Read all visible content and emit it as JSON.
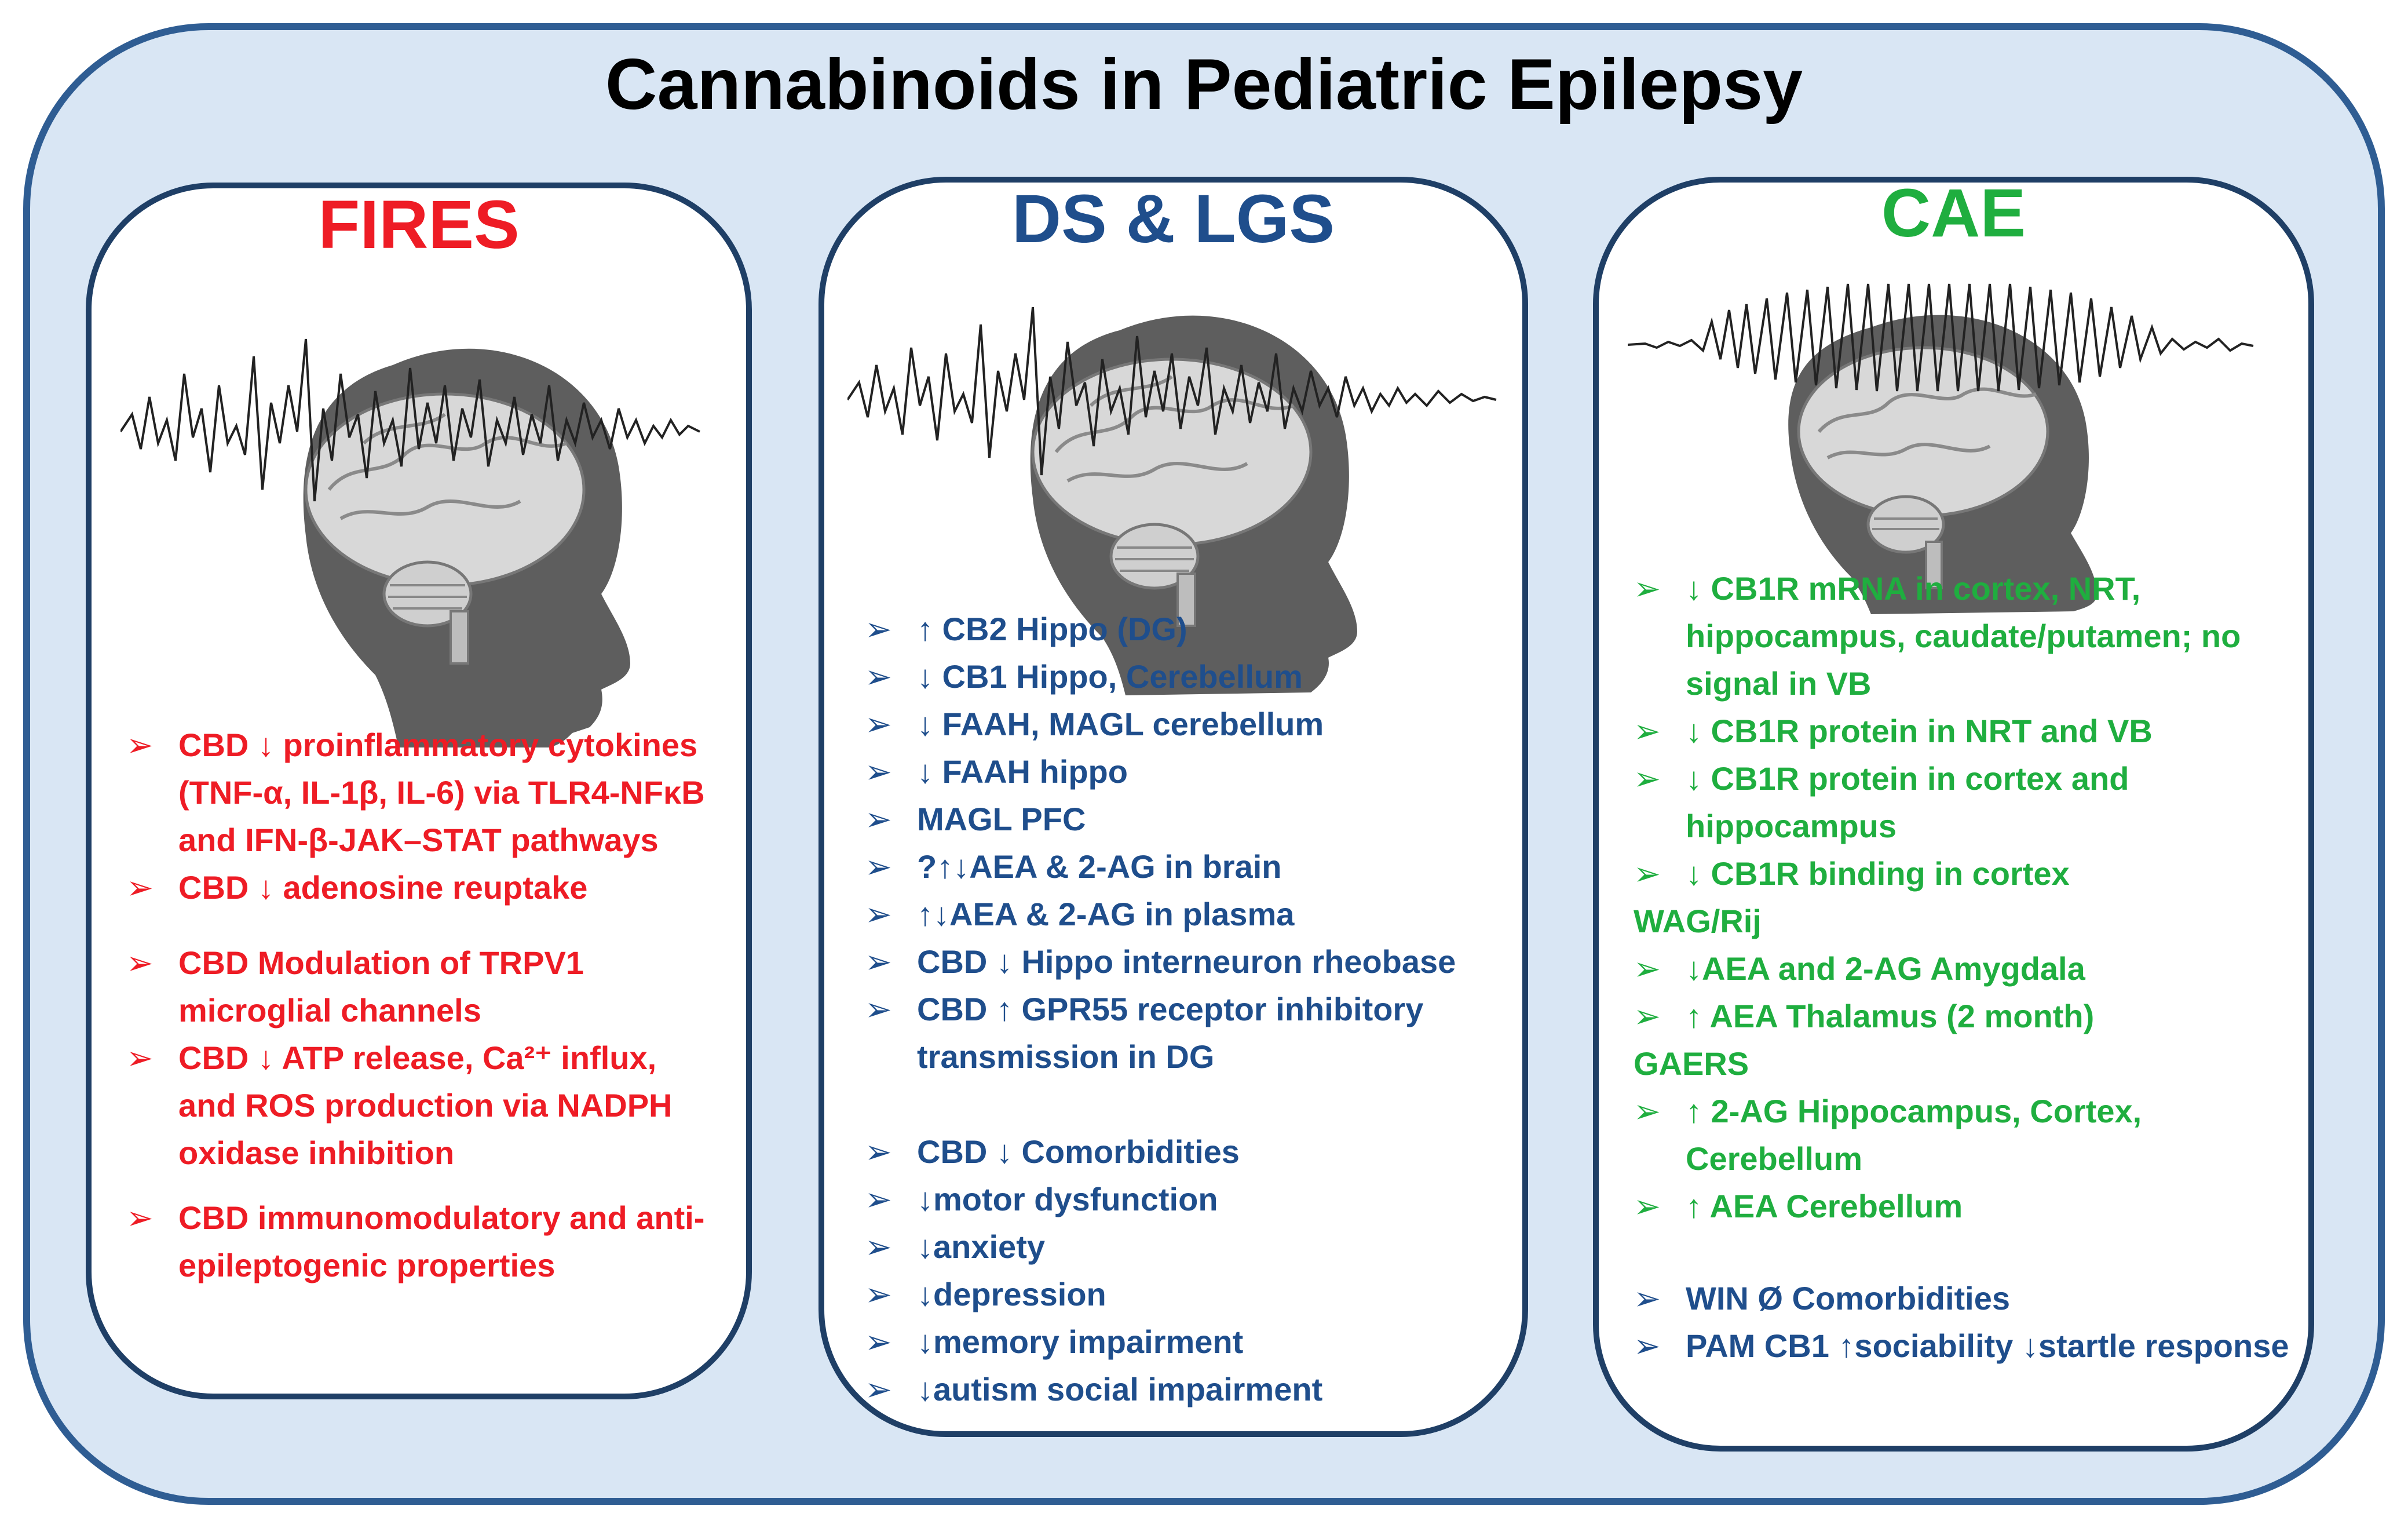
{
  "title": "Cannabinoids in Pediatric Epilepsy",
  "colors": {
    "frame_border": "#2f5d93",
    "frame_fill": "#d9e6f4",
    "fires": "#ee1c25",
    "ds_lgs": "#1f4e8c",
    "cae": "#1fae3f"
  },
  "panels": {
    "fires": {
      "title": "FIRES",
      "items": [
        "CBD ↓ proinflammatory cytokines (TNF-α, IL-1β, IL-6) via TLR4-NFκB and IFN-β-JAK–STAT pathways",
        "CBD ↓ adenosine reuptake",
        "CBD Modulation of TRPV1 microglial channels",
        "CBD ↓ ATP release, Ca²⁺ influx, and ROS production via NADPH oxidase inhibition",
        "CBD immunomodulatory and anti-epileptogenic properties"
      ]
    },
    "ds_lgs": {
      "title": "DS & LGS",
      "items": [
        "↑ CB2 Hippo (DG)",
        "↓ CB1 Hippo, Cerebellum",
        "↓ FAAH, MAGL cerebellum",
        "↓ FAAH hippo",
        "MAGL PFC",
        "?↑↓AEA & 2-AG in brain",
        "↑↓AEA & 2-AG in plasma",
        "CBD ↓ Hippo interneuron rheobase",
        "CBD ↑ GPR55 receptor inhibitory transmission in DG"
      ],
      "comorbidity_items": [
        "CBD ↓ Comorbidities",
        "↓motor dysfunction",
        "↓anxiety",
        "↓depression",
        "↓memory impairment",
        "↓autism social impairment"
      ]
    },
    "cae": {
      "title": "CAE",
      "wag_items": [
        "↓ CB1R mRNA in cortex, NRT, hippocampus, caudate/putamen; no signal in VB",
        "↓ CB1R protein in NRT and VB",
        "↓ CB1R protein in cortex and hippocampus",
        "↓ CB1R binding in cortex"
      ],
      "wag_label": "WAG/Rij",
      "gaers_items": [
        "↓AEA and 2-AG Amygdala",
        "↑ AEA Thalamus (2 month)"
      ],
      "gaers_label": "GAERS",
      "tail_items": [
        "↑ 2-AG Hippocampus, Cortex, Cerebellum",
        "↑ AEA Cerebellum"
      ],
      "comorbidity_items": [
        "WIN Ø Comorbidities",
        "PAM CB1 ↑sociability ↓startle response"
      ]
    }
  },
  "icons": {
    "bullet": "arrow-bullet-icon",
    "illustration": "child-head-brain-eeg-icon"
  }
}
